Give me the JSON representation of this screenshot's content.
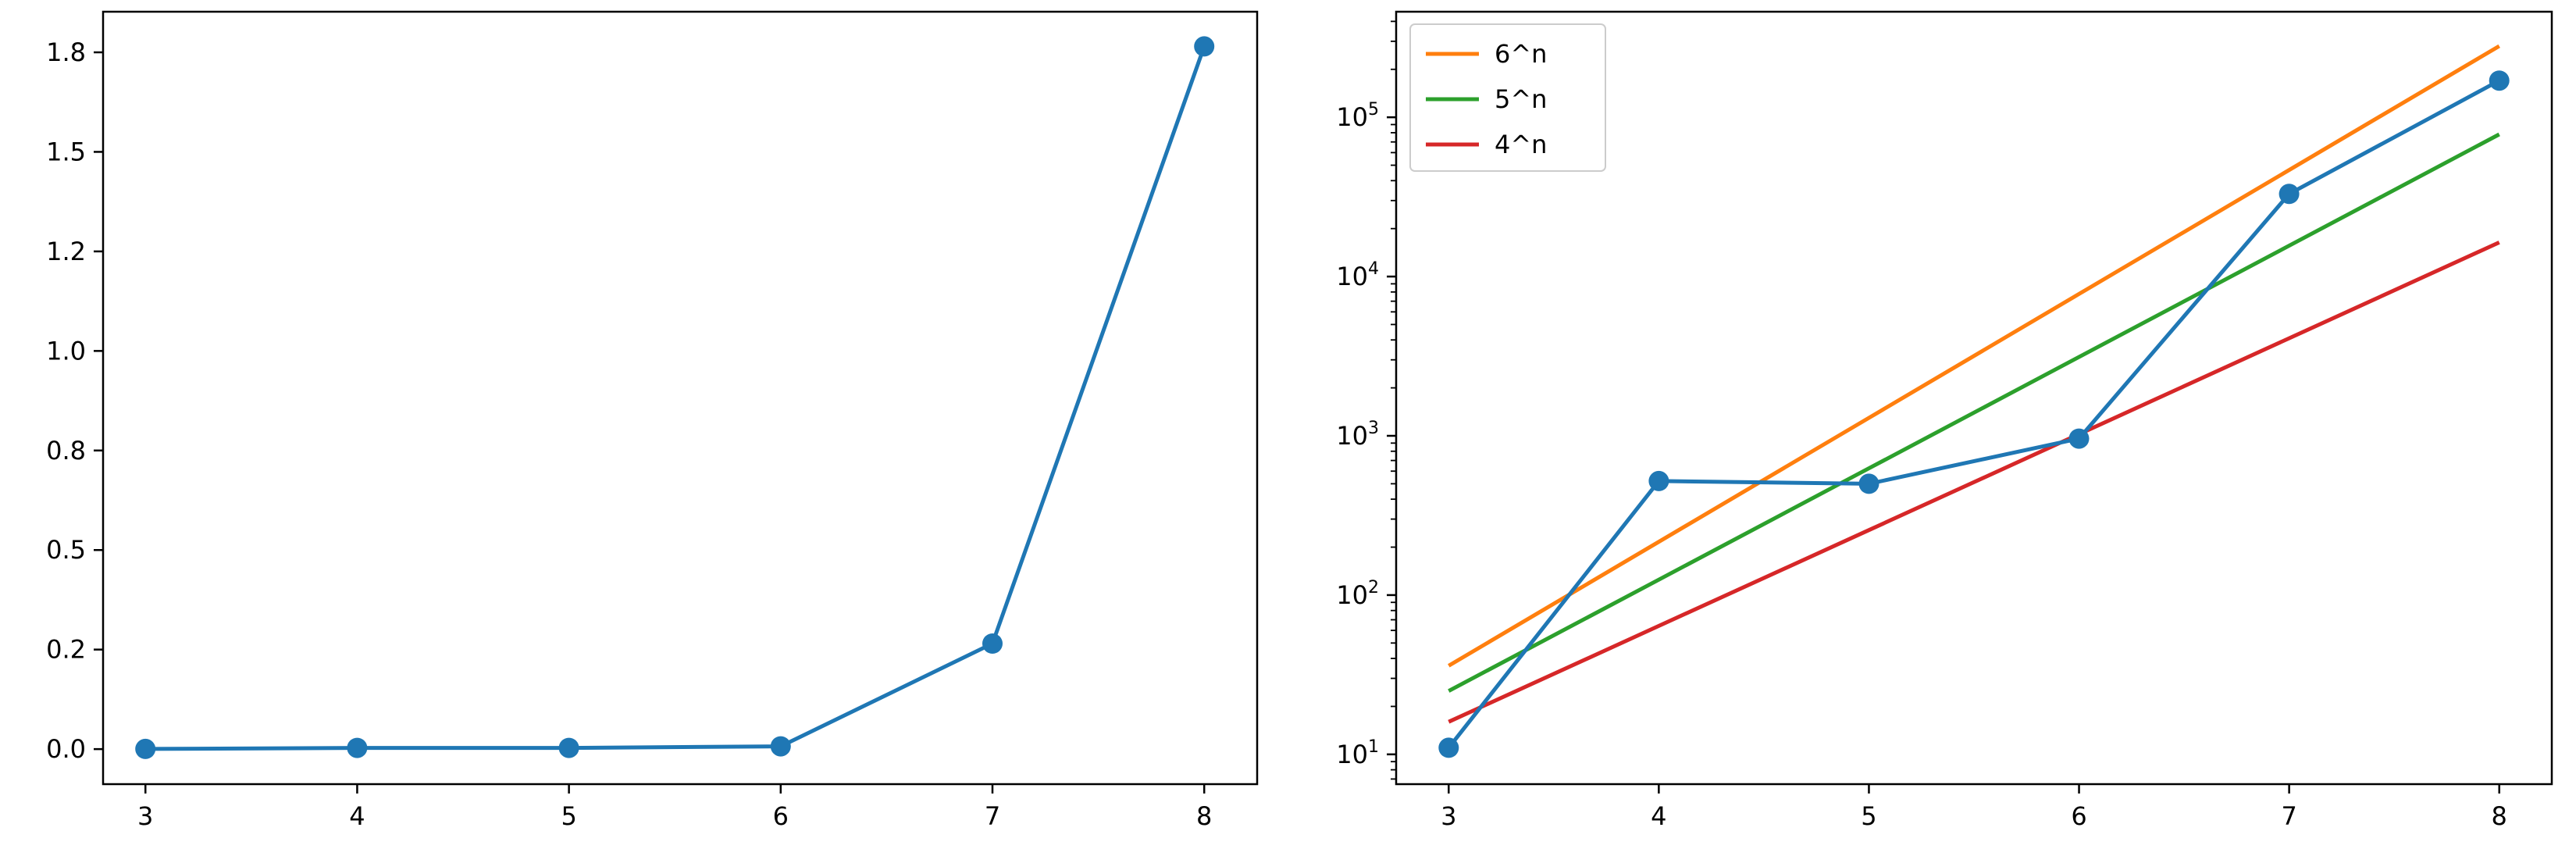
{
  "chart_data": [
    {
      "type": "line",
      "title": "",
      "xlabel": "",
      "ylabel": "",
      "x": [
        3,
        4,
        5,
        6,
        7,
        8
      ],
      "xticks": [
        "3",
        "4",
        "5",
        "6",
        "7",
        "8"
      ],
      "yticks": [
        "0.0",
        "0.2",
        "0.5",
        "0.8",
        "1.0",
        "1.2",
        "1.5",
        "1.8"
      ],
      "ytick_values": [
        0.0,
        0.25,
        0.5,
        0.75,
        1.0,
        1.25,
        1.5,
        1.75
      ],
      "xlim": [
        2.8,
        8.25
      ],
      "ylim": [
        -0.088,
        1.852
      ],
      "yscale": "linear",
      "grid": false,
      "series": [
        {
          "color": "#1f77b4",
          "marker": "circle",
          "values": [
            0.0005,
            0.003,
            0.003,
            0.007,
            0.265,
            1.765
          ]
        }
      ]
    },
    {
      "type": "line",
      "title": "",
      "xlabel": "",
      "ylabel": "",
      "x": [
        3,
        4,
        5,
        6,
        7,
        8
      ],
      "xticks": [
        "3",
        "4",
        "5",
        "6",
        "7",
        "8"
      ],
      "ytick_values": [
        10,
        100,
        1000,
        10000,
        100000
      ],
      "yticks": [
        {
          "base": "10",
          "exp": "1"
        },
        {
          "base": "10",
          "exp": "2"
        },
        {
          "base": "10",
          "exp": "3"
        },
        {
          "base": "10",
          "exp": "4"
        },
        {
          "base": "10",
          "exp": "5"
        }
      ],
      "xlim": [
        2.75,
        8.25
      ],
      "ylim": [
        6.5,
        460000
      ],
      "yscale": "log",
      "grid": false,
      "legend_position": "top-left",
      "series": [
        {
          "color": "#1f77b4",
          "marker": "circle",
          "values": [
            11,
            520,
            500,
            960,
            33000,
            170000
          ]
        },
        {
          "name": "6^n",
          "color": "#ff7f0e",
          "values": [
            36,
            216,
            1296,
            7776,
            46656,
            279936
          ]
        },
        {
          "name": "5^n",
          "color": "#2ca02c",
          "values": [
            25,
            125,
            625,
            3125,
            15625,
            78125
          ]
        },
        {
          "name": "4^n",
          "color": "#d62728",
          "values": [
            16,
            64,
            256,
            1024,
            4096,
            16384
          ]
        }
      ]
    }
  ]
}
